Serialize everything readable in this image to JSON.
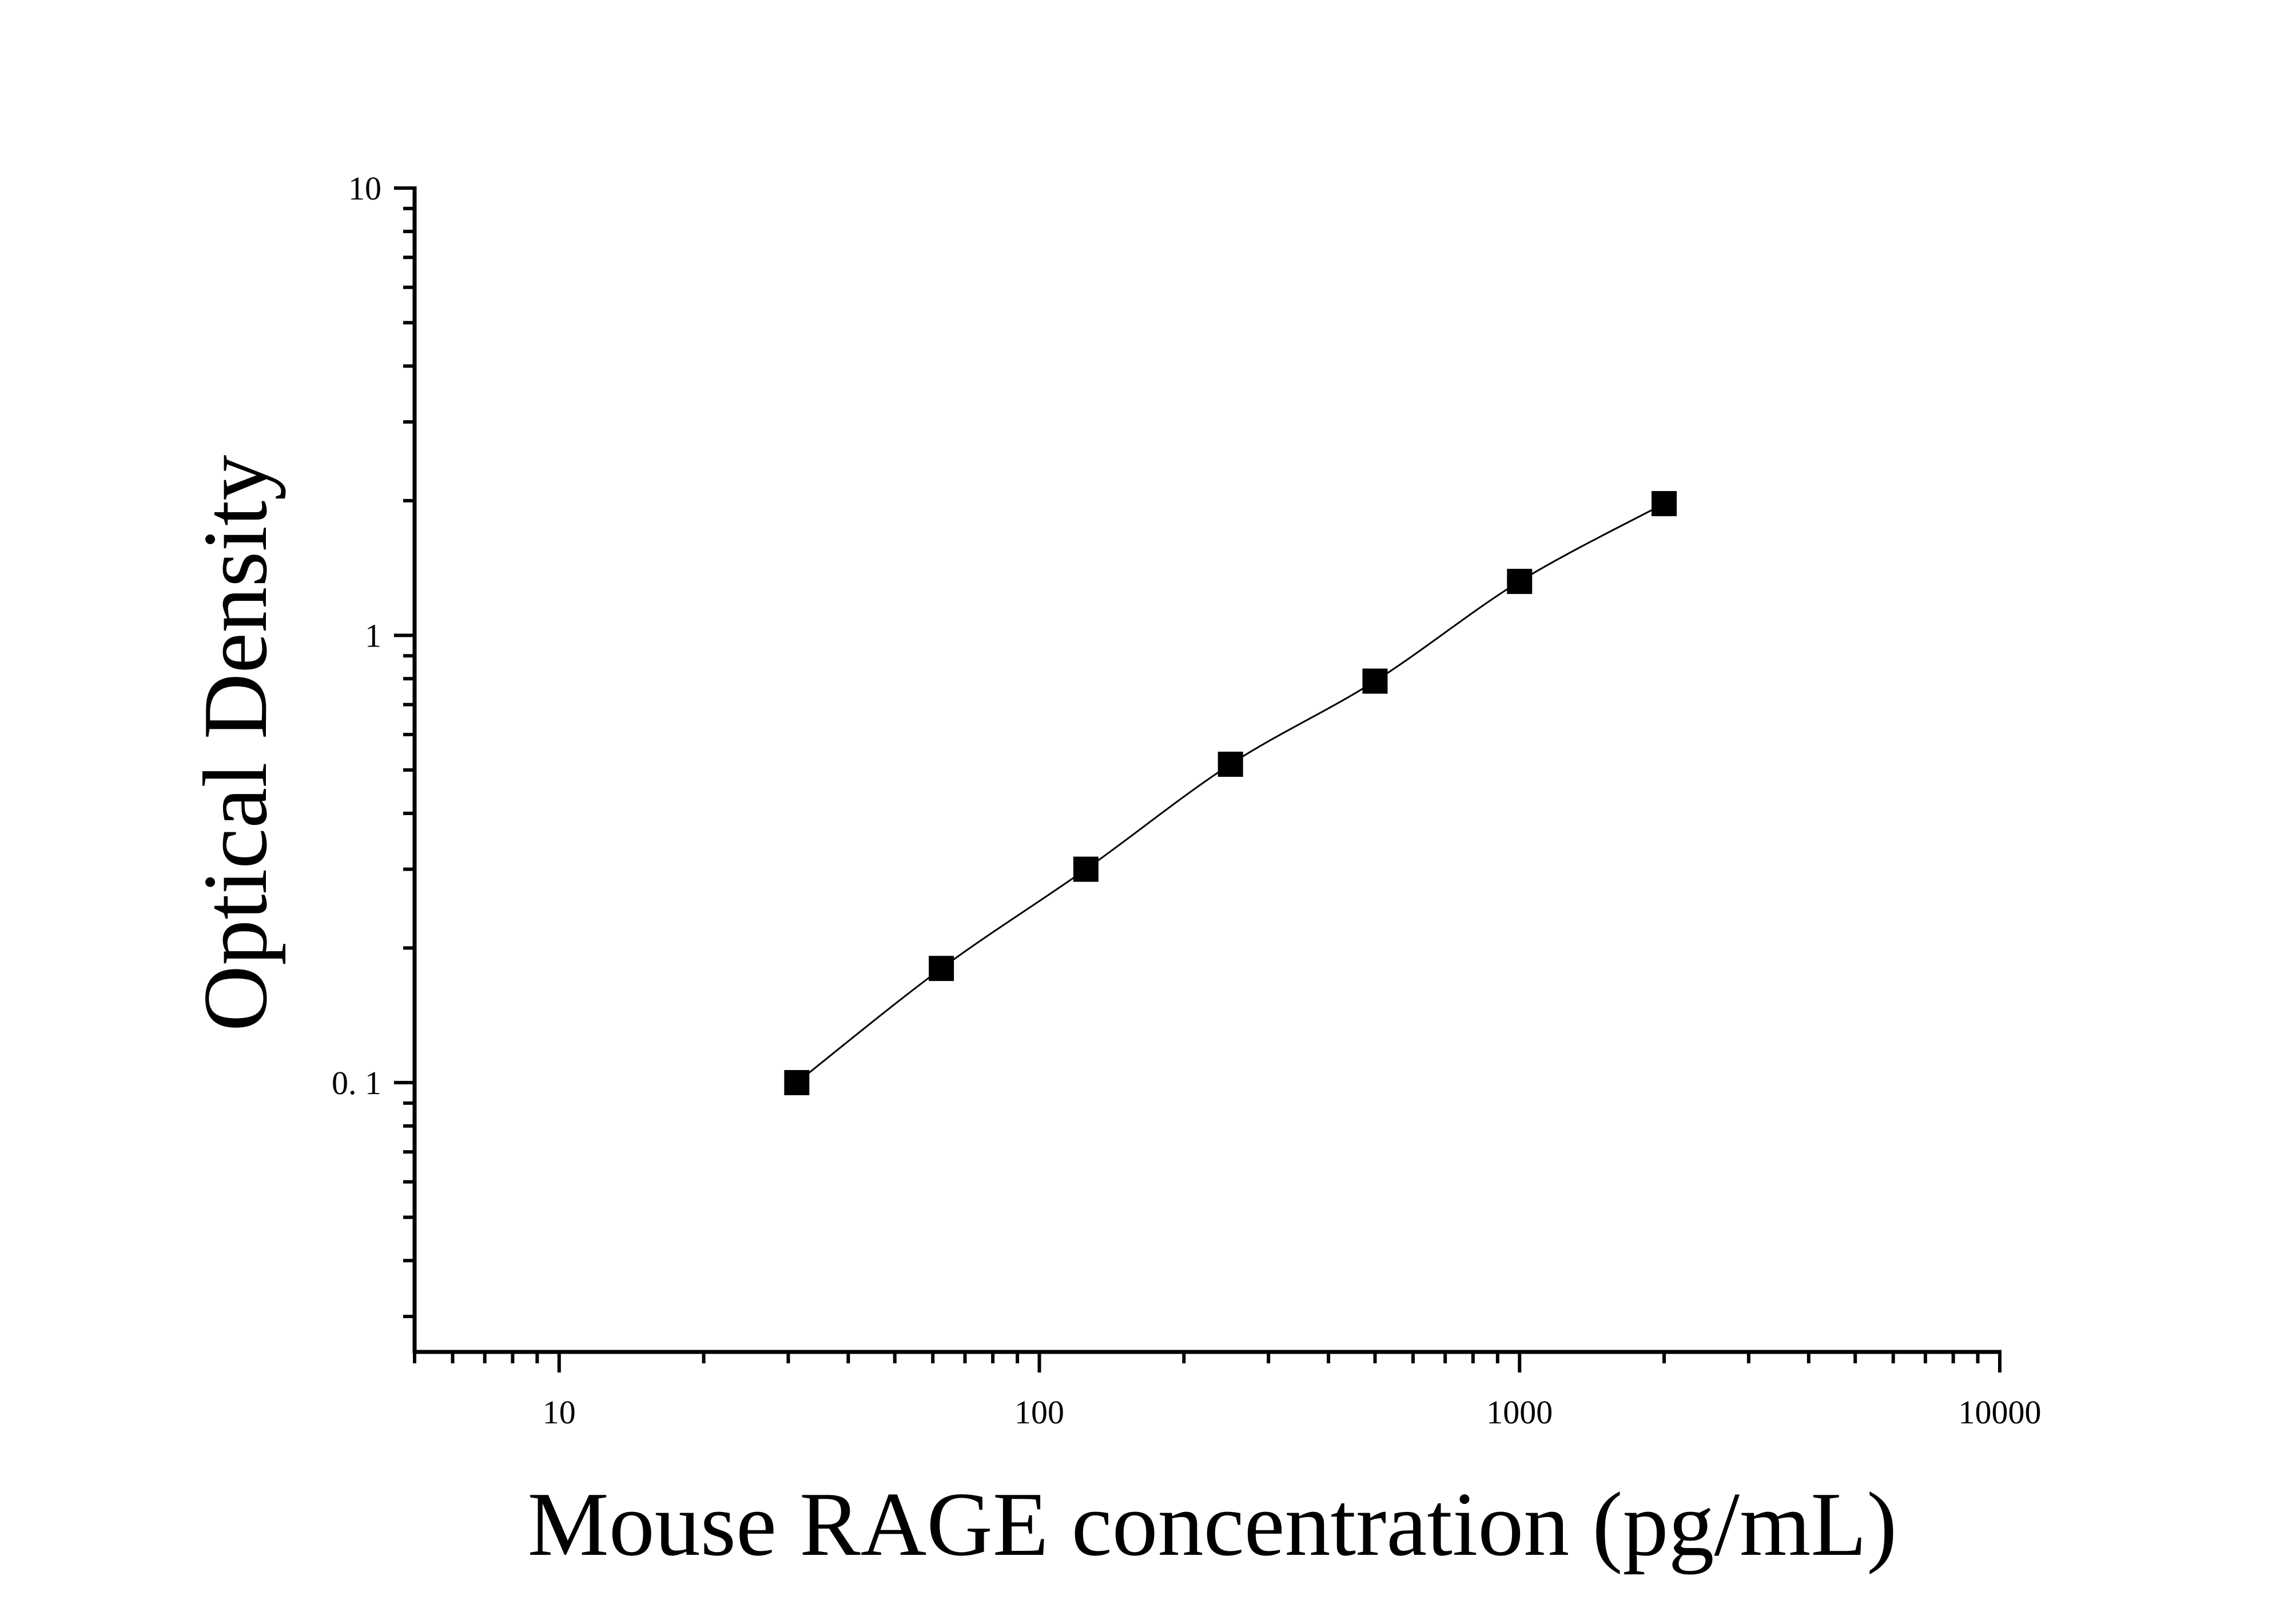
{
  "chart_data": {
    "type": "scatter",
    "title": "",
    "xlabel": "Mouse RAGE concentration (pg/mL)",
    "ylabel": "Optical Density",
    "x_scale": "log",
    "y_scale": "log",
    "xlim": [
      5,
      10000
    ],
    "ylim": [
      0.025,
      10
    ],
    "x_ticks": [
      10,
      100,
      1000,
      10000
    ],
    "x_tick_labels": [
      "10",
      "100",
      "1000",
      "10000"
    ],
    "y_ticks": [
      0.1,
      1,
      10
    ],
    "y_tick_labels": [
      "0. 1",
      "1",
      "10"
    ],
    "grid": false,
    "marker": "square",
    "fit_curve": true,
    "colors": {
      "marker": "#000000",
      "line": "#000000",
      "axis": "#000000"
    },
    "x": [
      31.25,
      62.5,
      125,
      250,
      500,
      1000,
      2000
    ],
    "y": [
      0.1,
      0.18,
      0.3,
      0.515,
      0.79,
      1.32,
      1.97
    ]
  }
}
